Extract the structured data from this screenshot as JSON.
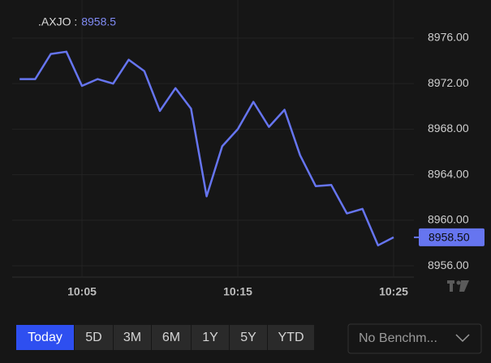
{
  "chart_data": {
    "type": "line",
    "title": ".AXJO :",
    "last_value": 8958.5,
    "price_tag": {
      "value": 8958.5,
      "label": "8958.50"
    },
    "x": [
      "10:01",
      "10:02",
      "10:03",
      "10:04",
      "10:05",
      "10:06",
      "10:07",
      "10:08",
      "10:09",
      "10:10",
      "10:11",
      "10:12",
      "10:13",
      "10:14",
      "10:15",
      "10:16",
      "10:17",
      "10:18",
      "10:19",
      "10:20",
      "10:21",
      "10:22",
      "10:23",
      "10:24",
      "10:25"
    ],
    "values": [
      8972.4,
      8972.4,
      8974.6,
      8974.8,
      8971.8,
      8972.4,
      8972.0,
      8974.1,
      8973.1,
      8969.6,
      8971.6,
      8969.8,
      8962.1,
      8966.5,
      8968.0,
      8970.4,
      8968.2,
      8969.7,
      8965.7,
      8963.0,
      8963.1,
      8960.6,
      8961.0,
      8957.8,
      8958.5
    ],
    "color": "#6675f0",
    "xlim": [
      "10:00",
      "10:26"
    ],
    "xticks": [
      "10:05",
      "10:15",
      "10:25"
    ],
    "ylim": [
      8955.15,
      8978.63
    ],
    "yticks": [
      {
        "value": 8956,
        "label": "8956.00"
      },
      {
        "value": 8960,
        "label": "8960.00"
      },
      {
        "value": 8964,
        "label": "8964.00"
      },
      {
        "value": 8968,
        "label": "8968.00"
      },
      {
        "value": 8972,
        "label": "8972.00"
      },
      {
        "value": 8976,
        "label": "8976.00"
      }
    ],
    "grid": true
  },
  "controls": {
    "ranges": [
      "Today",
      "5D",
      "3M",
      "6M",
      "1Y",
      "5Y",
      "YTD"
    ],
    "active_index": 0,
    "benchmark": "No Benchm..."
  }
}
